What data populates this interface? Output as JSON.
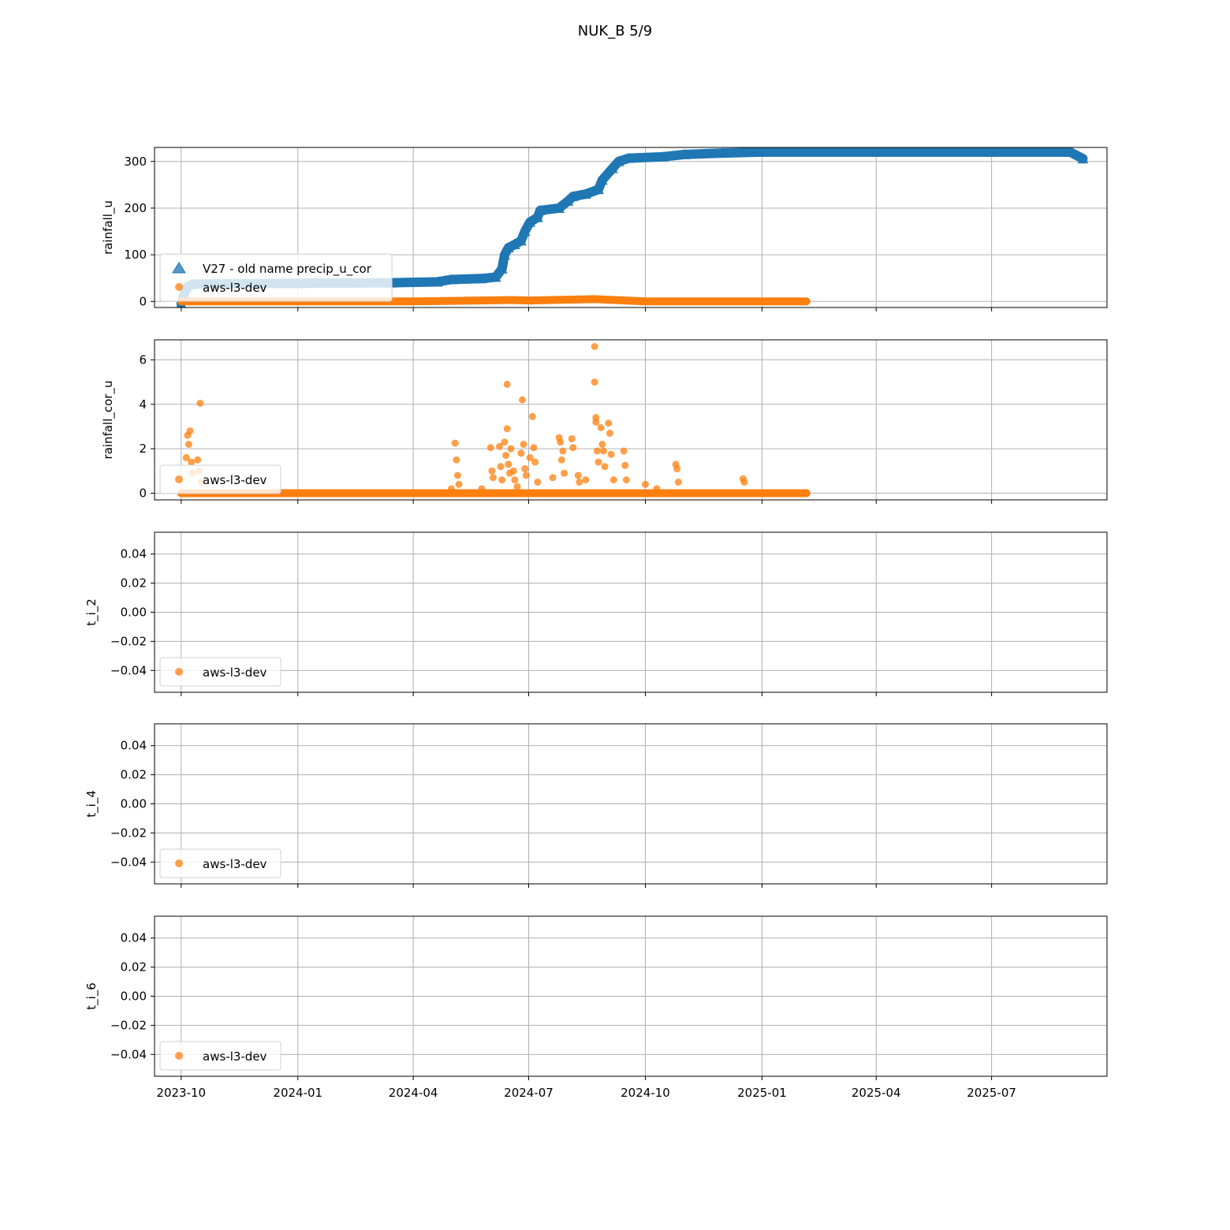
{
  "figure_title": "NUK_B 5/9",
  "x_ticks": [
    "2023-10",
    "2024-01",
    "2024-04",
    "2024-07",
    "2024-10",
    "2025-01",
    "2025-04",
    "2025-07"
  ],
  "colors": {
    "blue": "#1f77b4",
    "orange": "#ff7f0e",
    "grid": "#b0b0b0"
  },
  "chart_data": [
    {
      "type": "scatter",
      "ylabel": "rainfall_u",
      "y_ticks": [
        0,
        100,
        200,
        300
      ],
      "ylim": [
        -13,
        330
      ],
      "xlim": [
        "2023-09-10",
        "2025-09-30"
      ],
      "grid": true,
      "legend_position": "lower-left",
      "series": [
        {
          "name": "V27 - old name precip_u_cor",
          "marker": "triangle",
          "color": "#1f77b4",
          "points": [
            [
              "2023-10-01",
              -5
            ],
            [
              "2023-10-05",
              30
            ],
            [
              "2023-10-10",
              37
            ],
            [
              "2023-11-15",
              38
            ],
            [
              "2024-01-01",
              39
            ],
            [
              "2024-03-15",
              40
            ],
            [
              "2024-04-20",
              42
            ],
            [
              "2024-05-01",
              47
            ],
            [
              "2024-05-25",
              49
            ],
            [
              "2024-06-05",
              52
            ],
            [
              "2024-06-10",
              70
            ],
            [
              "2024-06-12",
              100
            ],
            [
              "2024-06-15",
              115
            ],
            [
              "2024-06-20",
              122
            ],
            [
              "2024-06-25",
              130
            ],
            [
              "2024-06-28",
              150
            ],
            [
              "2024-07-02",
              170
            ],
            [
              "2024-07-08",
              180
            ],
            [
              "2024-07-10",
              195
            ],
            [
              "2024-07-25",
              200
            ],
            [
              "2024-08-01",
              215
            ],
            [
              "2024-08-05",
              225
            ],
            [
              "2024-08-15",
              230
            ],
            [
              "2024-08-25",
              240
            ],
            [
              "2024-08-28",
              260
            ],
            [
              "2024-09-05",
              285
            ],
            [
              "2024-09-10",
              300
            ],
            [
              "2024-09-18",
              307
            ],
            [
              "2024-10-15",
              310
            ],
            [
              "2024-11-01",
              315
            ],
            [
              "2024-12-01",
              318
            ],
            [
              "2025-01-01",
              320
            ],
            [
              "2025-04-01",
              320
            ],
            [
              "2025-07-01",
              320
            ],
            [
              "2025-09-01",
              320
            ],
            [
              "2025-09-11",
              306
            ]
          ]
        },
        {
          "name": "aws-l3-dev",
          "marker": "circle",
          "color": "#ff7f0e",
          "points": [
            [
              "2023-10-01",
              0
            ],
            [
              "2024-01-01",
              0
            ],
            [
              "2024-04-01",
              0
            ],
            [
              "2024-06-18",
              3
            ],
            [
              "2024-07-01",
              2
            ],
            [
              "2024-08-22",
              5
            ],
            [
              "2024-10-01",
              0
            ],
            [
              "2025-01-01",
              0
            ],
            [
              "2025-02-05",
              0
            ]
          ]
        }
      ]
    },
    {
      "type": "scatter",
      "ylabel": "rainfall_cor_u",
      "y_ticks": [
        0,
        2,
        4,
        6
      ],
      "ylim": [
        -0.3,
        6.9
      ],
      "xlim": [
        "2023-09-10",
        "2025-09-30"
      ],
      "grid": true,
      "legend_position": "lower-left",
      "series": [
        {
          "name": "aws-l3-dev",
          "marker": "circle",
          "color": "#ff7f0e",
          "baseline": {
            "start": "2023-10-01",
            "end": "2025-02-05",
            "value": 0
          },
          "points": [
            [
              "2023-10-05",
              1.6
            ],
            [
              "2023-10-06",
              2.6
            ],
            [
              "2023-10-07",
              2.2
            ],
            [
              "2023-10-08",
              2.8
            ],
            [
              "2023-10-09",
              1.4
            ],
            [
              "2023-10-10",
              0.9
            ],
            [
              "2023-10-14",
              1.5
            ],
            [
              "2023-10-15",
              1.0
            ],
            [
              "2023-10-16",
              4.05
            ],
            [
              "2023-10-17",
              0.5
            ],
            [
              "2024-05-01",
              0.2
            ],
            [
              "2024-05-04",
              2.25
            ],
            [
              "2024-05-05",
              1.5
            ],
            [
              "2024-05-06",
              0.8
            ],
            [
              "2024-05-07",
              0.4
            ],
            [
              "2024-05-25",
              0.2
            ],
            [
              "2024-06-01",
              2.05
            ],
            [
              "2024-06-02",
              1.0
            ],
            [
              "2024-06-03",
              0.7
            ],
            [
              "2024-06-08",
              2.1
            ],
            [
              "2024-06-09",
              1.2
            ],
            [
              "2024-06-10",
              0.6
            ],
            [
              "2024-06-12",
              2.3
            ],
            [
              "2024-06-13",
              1.7
            ],
            [
              "2024-06-14",
              4.9
            ],
            [
              "2024-06-14",
              2.9
            ],
            [
              "2024-06-15",
              1.3
            ],
            [
              "2024-06-16",
              0.9
            ],
            [
              "2024-06-17",
              2.0
            ],
            [
              "2024-06-19",
              1.0
            ],
            [
              "2024-06-20",
              0.6
            ],
            [
              "2024-06-22",
              0.3
            ],
            [
              "2024-06-25",
              1.8
            ],
            [
              "2024-06-26",
              4.2
            ],
            [
              "2024-06-27",
              2.2
            ],
            [
              "2024-06-28",
              1.1
            ],
            [
              "2024-06-29",
              0.8
            ],
            [
              "2024-07-02",
              1.6
            ],
            [
              "2024-07-04",
              3.45
            ],
            [
              "2024-07-05",
              2.05
            ],
            [
              "2024-07-06",
              1.4
            ],
            [
              "2024-07-08",
              0.5
            ],
            [
              "2024-07-20",
              0.7
            ],
            [
              "2024-07-25",
              2.5
            ],
            [
              "2024-07-26",
              2.3
            ],
            [
              "2024-07-27",
              1.5
            ],
            [
              "2024-07-28",
              1.9
            ],
            [
              "2024-07-29",
              0.9
            ],
            [
              "2024-08-04",
              2.45
            ],
            [
              "2024-08-05",
              2.05
            ],
            [
              "2024-08-09",
              0.8
            ],
            [
              "2024-08-10",
              0.5
            ],
            [
              "2024-08-15",
              0.6
            ],
            [
              "2024-08-22",
              6.6
            ],
            [
              "2024-08-22",
              5.0
            ],
            [
              "2024-08-23",
              3.4
            ],
            [
              "2024-08-23",
              3.2
            ],
            [
              "2024-08-24",
              1.9
            ],
            [
              "2024-08-25",
              1.4
            ],
            [
              "2024-08-27",
              2.95
            ],
            [
              "2024-08-28",
              2.2
            ],
            [
              "2024-08-29",
              1.9
            ],
            [
              "2024-08-30",
              1.2
            ],
            [
              "2024-09-02",
              3.15
            ],
            [
              "2024-09-03",
              2.7
            ],
            [
              "2024-09-04",
              1.75
            ],
            [
              "2024-09-06",
              0.6
            ],
            [
              "2024-09-14",
              1.9
            ],
            [
              "2024-09-15",
              1.25
            ],
            [
              "2024-09-16",
              0.6
            ],
            [
              "2024-10-01",
              0.4
            ],
            [
              "2024-10-10",
              0.2
            ],
            [
              "2024-10-25",
              1.3
            ],
            [
              "2024-10-26",
              1.1
            ],
            [
              "2024-10-27",
              0.5
            ],
            [
              "2024-12-17",
              0.65
            ],
            [
              "2024-12-18",
              0.5
            ]
          ]
        }
      ]
    },
    {
      "type": "scatter",
      "ylabel": "t_i_2",
      "y_ticks": [
        -0.04,
        -0.02,
        0.0,
        0.02,
        0.04
      ],
      "y_tick_labels": [
        "−0.04",
        "−0.02",
        "0.00",
        "0.02",
        "0.04"
      ],
      "ylim": [
        -0.055,
        0.055
      ],
      "xlim": [
        "2023-09-10",
        "2025-09-30"
      ],
      "grid": true,
      "legend_position": "lower-left",
      "series": [
        {
          "name": "aws-l3-dev",
          "marker": "circle",
          "color": "#ff7f0e",
          "points": []
        }
      ]
    },
    {
      "type": "scatter",
      "ylabel": "t_i_4",
      "y_ticks": [
        -0.04,
        -0.02,
        0.0,
        0.02,
        0.04
      ],
      "y_tick_labels": [
        "−0.04",
        "−0.02",
        "0.00",
        "0.02",
        "0.04"
      ],
      "ylim": [
        -0.055,
        0.055
      ],
      "xlim": [
        "2023-09-10",
        "2025-09-30"
      ],
      "grid": true,
      "legend_position": "lower-left",
      "series": [
        {
          "name": "aws-l3-dev",
          "marker": "circle",
          "color": "#ff7f0e",
          "points": []
        }
      ]
    },
    {
      "type": "scatter",
      "ylabel": "t_i_6",
      "y_ticks": [
        -0.04,
        -0.02,
        0.0,
        0.02,
        0.04
      ],
      "y_tick_labels": [
        "−0.04",
        "−0.02",
        "0.00",
        "0.02",
        "0.04"
      ],
      "ylim": [
        -0.055,
        0.055
      ],
      "xlim": [
        "2023-09-10",
        "2025-09-30"
      ],
      "grid": true,
      "legend_position": "lower-left",
      "series": [
        {
          "name": "aws-l3-dev",
          "marker": "circle",
          "color": "#ff7f0e",
          "points": []
        }
      ]
    }
  ]
}
